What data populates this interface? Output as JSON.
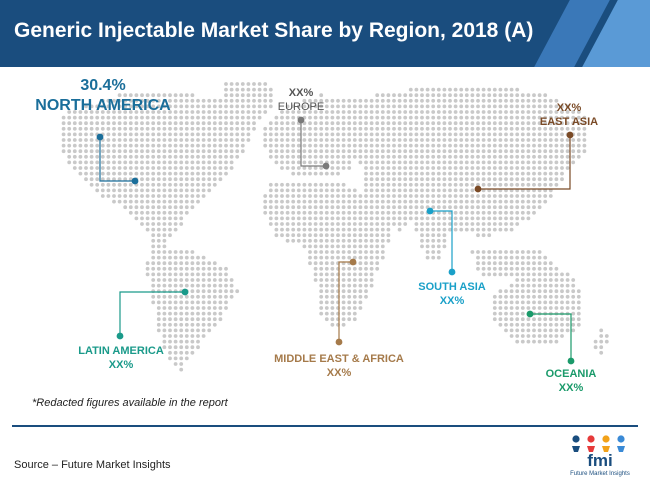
{
  "header": {
    "title": "Generic Injectable Market Share by Region, 2018 (A)"
  },
  "regions": [
    {
      "id": "north-america",
      "value": "30.4%",
      "name": "NORTH AMERICA",
      "color": "#1a6e9a"
    },
    {
      "id": "europe",
      "value": "XX%",
      "name": "EUROPE",
      "color": "#7a7a7a"
    },
    {
      "id": "east-asia",
      "value": "XX%",
      "name": "EAST ASIA",
      "color": "#7a4a26"
    },
    {
      "id": "south-asia",
      "value": "XX%",
      "name": "SOUTH ASIA",
      "color": "#1aa0c8"
    },
    {
      "id": "latin-america",
      "name": "LATIN AMERICA",
      "value": "XX%",
      "color": "#1a9a8a"
    },
    {
      "id": "mea",
      "name": "MIDDLE EAST & AFRICA",
      "value": "XX%",
      "color": "#a57a4a"
    },
    {
      "id": "oceania",
      "name": "OCEANIA",
      "value": "XX%",
      "color": "#1a9a6a"
    }
  ],
  "note": "*Redacted figures available in the report",
  "source": "Source – Future Market Insights",
  "logo": {
    "letters": "fmi",
    "tagline": "Future Market Insights",
    "colors": [
      "#1a4d7e",
      "#e63a3a",
      "#f2a21a",
      "#3a8ad6"
    ]
  }
}
